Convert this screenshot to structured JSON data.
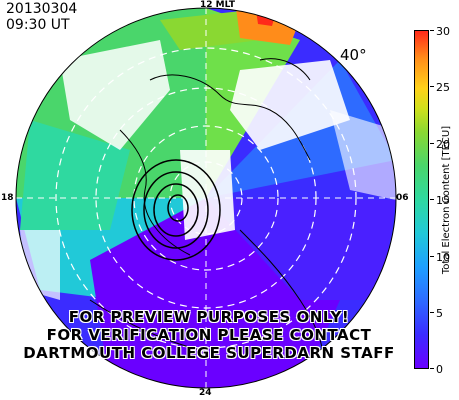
{
  "header": {
    "date": "20130304",
    "time": "09:30 UT"
  },
  "mlt_labels": {
    "top": "12 MLT",
    "bottom": "24",
    "left": "18",
    "right": "06"
  },
  "latitude_label": "40°",
  "colorbar": {
    "title": "Total Electron Content [TECU]",
    "ticks": [
      "30",
      "25",
      "20",
      "15",
      "10",
      "5",
      "0"
    ],
    "min": 0,
    "max": 30
  },
  "watermark": {
    "line1": "FOR PREVIEW PURPOSES ONLY!",
    "line2": "FOR VERIFICATION PLEASE CONTACT",
    "line3": "DARTMOUTH COLLEGE SUPERDARN STAFF"
  },
  "colors": {
    "low": "#6a00ff",
    "mid": "#2fd9a0",
    "high": "#ff2a1a",
    "contour": "#000000",
    "grid": "#ffffff"
  }
}
